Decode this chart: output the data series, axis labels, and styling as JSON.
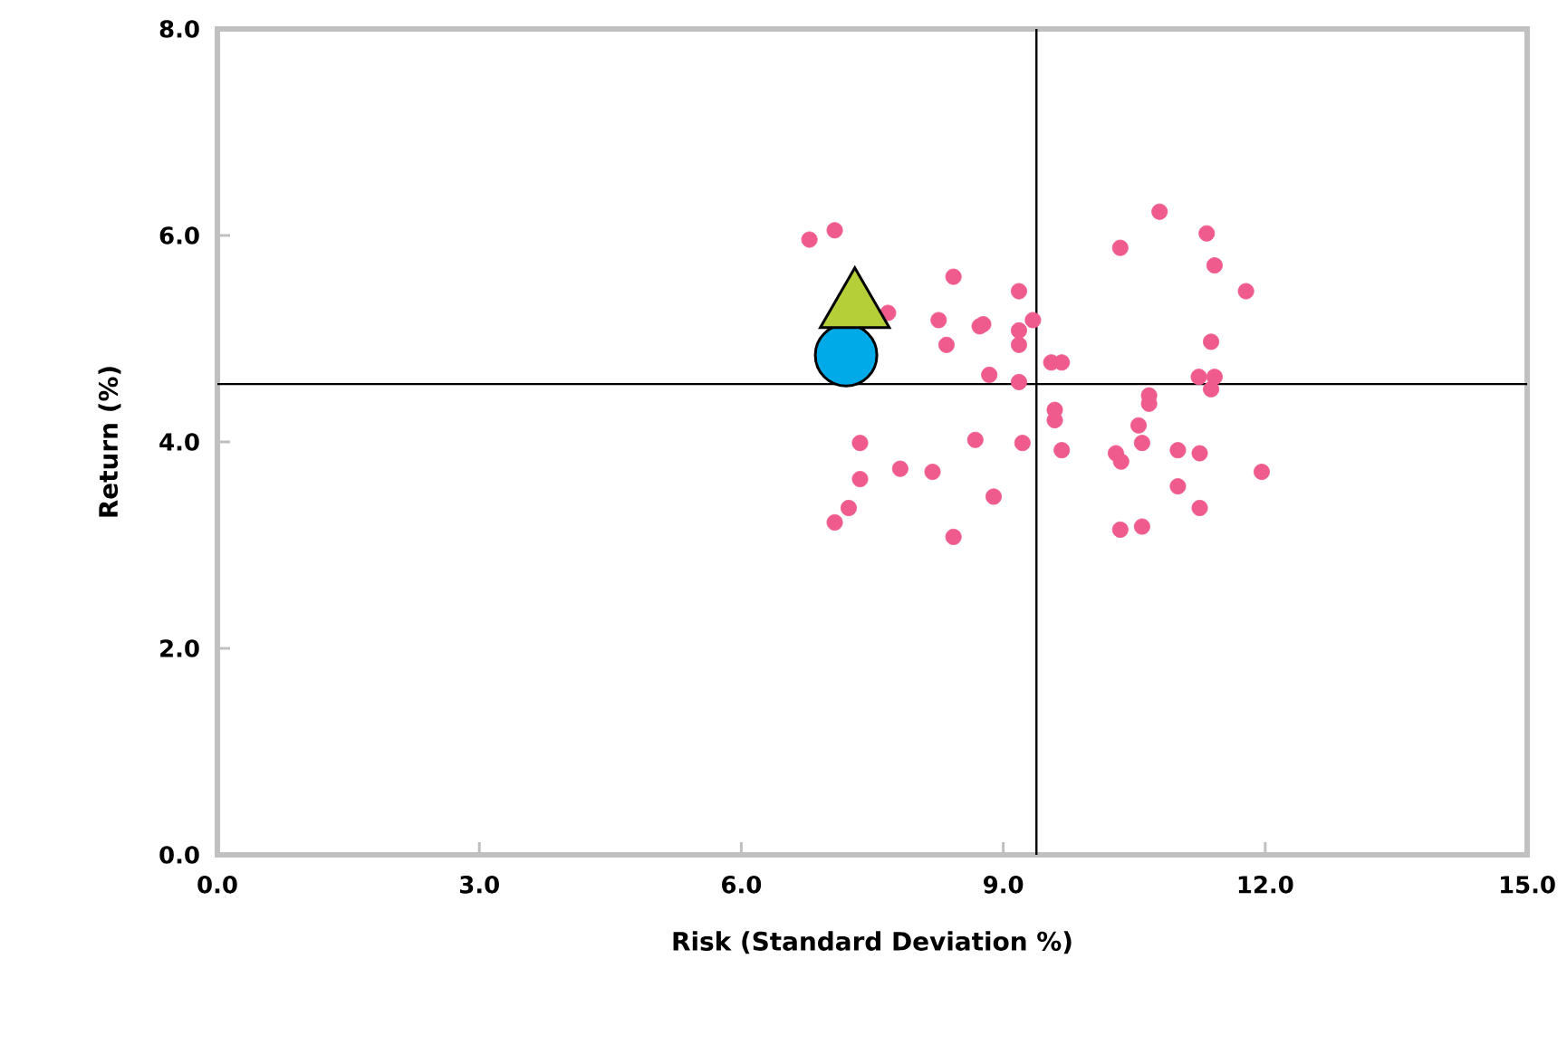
{
  "chart_data": {
    "type": "scatter",
    "xlabel": "Risk (Standard Deviation %)",
    "ylabel": "Return (%)",
    "xlim": [
      0,
      15
    ],
    "ylim": [
      0,
      8
    ],
    "xticks": [
      {
        "value": 0,
        "label": "0.0"
      },
      {
        "value": 3,
        "label": "3.0"
      },
      {
        "value": 6,
        "label": "6.0"
      },
      {
        "value": 9,
        "label": "9.0"
      },
      {
        "value": 12,
        "label": "12.0"
      },
      {
        "value": 15,
        "label": "15.0"
      }
    ],
    "yticks": [
      {
        "value": 0,
        "label": "0.0"
      },
      {
        "value": 2,
        "label": "2.0"
      },
      {
        "value": 4,
        "label": "4.0"
      },
      {
        "value": 6,
        "label": "6.0"
      },
      {
        "value": 8,
        "label": "8.0"
      }
    ],
    "ref_lines": [
      {
        "axis": "x",
        "value": 9.38,
        "color": "#000000"
      },
      {
        "axis": "y",
        "value": 4.56,
        "color": "#000000"
      }
    ],
    "series": [
      {
        "color": "#ef5b8d",
        "marker": "circle",
        "x": [
          6.78,
          7.07,
          8.43,
          7.68,
          8.26,
          8.73,
          8.77,
          9.18,
          9.34,
          9.18,
          9.18,
          8.35,
          8.84,
          9.18,
          9.55,
          9.67,
          10.34,
          9.59,
          9.59,
          9.67,
          9.22,
          8.68,
          7.36,
          7.36,
          7.82,
          8.19,
          8.89,
          7.23,
          7.07,
          8.43,
          10.34,
          10.79,
          11.33,
          11.42,
          11.78,
          11.38,
          11.24,
          11.42,
          11.38,
          10.67,
          10.67,
          10.55,
          10.59,
          10.29,
          10.35,
          11.0,
          11.25,
          11.96,
          11.0,
          11.25,
          10.59
        ],
        "values": [
          5.96,
          6.05,
          5.6,
          5.25,
          5.18,
          5.12,
          5.14,
          5.46,
          5.18,
          5.08,
          4.94,
          4.94,
          4.65,
          4.58,
          4.77,
          4.77,
          5.88,
          4.31,
          4.21,
          3.92,
          3.99,
          4.02,
          3.99,
          3.64,
          3.74,
          3.71,
          3.47,
          3.36,
          3.22,
          3.08,
          3.15,
          6.23,
          6.02,
          5.71,
          5.46,
          4.97,
          4.63,
          4.63,
          4.51,
          4.45,
          4.37,
          4.16,
          3.99,
          3.89,
          3.81,
          3.92,
          3.89,
          3.71,
          3.57,
          3.36,
          3.18
        ]
      },
      {
        "color": "#00a9e8",
        "marker": "circle",
        "x": [
          7.2
        ],
        "values": [
          4.84
        ]
      },
      {
        "color": "#b5cf38",
        "marker": "triangle",
        "x": [
          7.3
        ],
        "values": [
          5.3
        ]
      }
    ]
  }
}
